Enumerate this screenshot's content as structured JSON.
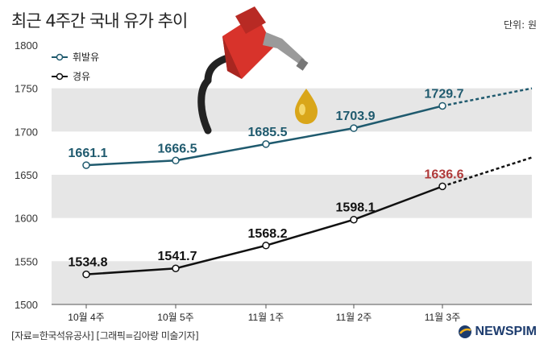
{
  "header": {
    "title": "최근 4주간 국내 유가 추이",
    "unit": "단위: 원"
  },
  "footer": {
    "source": "[자료=한국석유공사] [그래픽=김아랑 미술기자]",
    "logo": "NEWSPIM"
  },
  "colors": {
    "gasoline": "#1f5a6e",
    "diesel": "#111111",
    "highlight": "#b03a3a",
    "band": "#e6e6e6"
  },
  "chart_data": {
    "type": "line",
    "title": "최근 4주간 국내 유가 추이",
    "categories": [
      "10월 4주",
      "10월 5주",
      "11월 1주",
      "11월 2주",
      "11월 3주"
    ],
    "ylim": [
      1500,
      1800
    ],
    "yticks": [
      "1500",
      "1550",
      "1600",
      "1650",
      "1700",
      "1750",
      "1800"
    ],
    "grid": "alternating bands",
    "legend": "top-left",
    "series": [
      {
        "name": "휘발유",
        "values": [
          1661.1,
          1666.5,
          1685.5,
          1703.9,
          1729.7
        ],
        "labels": [
          "1661.1",
          "1666.5",
          "1685.5",
          "1703.9",
          "1729.7"
        ],
        "trend_end": 1750
      },
      {
        "name": "경유",
        "values": [
          1534.8,
          1541.7,
          1568.2,
          1598.1,
          1636.6
        ],
        "labels": [
          "1534.8",
          "1541.7",
          "1568.2",
          "1598.1",
          "1636.6"
        ],
        "trend_end": 1670
      }
    ]
  }
}
